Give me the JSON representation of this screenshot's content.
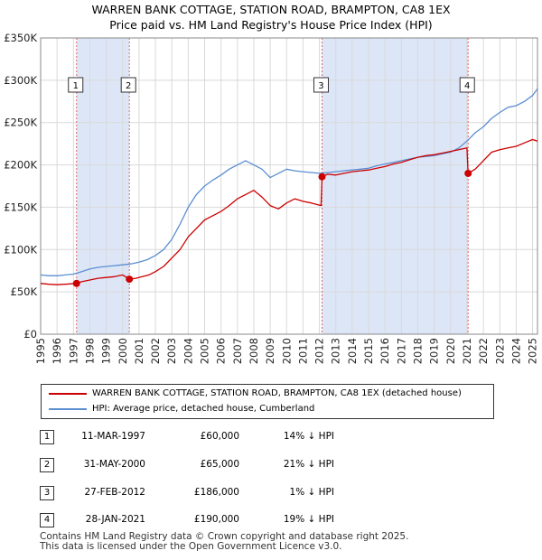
{
  "chart_data": {
    "type": "line",
    "title": "WARREN BANK COTTAGE, STATION ROAD, BRAMPTON, CA8 1EX",
    "subtitle": "Price paid vs. HM Land Registry's House Price Index (HPI)",
    "xlim": [
      1995,
      2025.3
    ],
    "ylim": [
      0,
      350000
    ],
    "y_ticks": [
      0,
      50000,
      100000,
      150000,
      200000,
      250000,
      300000,
      350000
    ],
    "y_tick_labels": [
      "£0",
      "£50K",
      "£100K",
      "£150K",
      "£200K",
      "£250K",
      "£300K",
      "£350K"
    ],
    "x_ticks": [
      1995,
      1996,
      1997,
      1998,
      1999,
      2000,
      2001,
      2002,
      2003,
      2004,
      2005,
      2006,
      2007,
      2008,
      2009,
      2010,
      2011,
      2012,
      2013,
      2014,
      2015,
      2016,
      2017,
      2018,
      2019,
      2020,
      2021,
      2022,
      2023,
      2024,
      2025
    ],
    "x_tick_labels": [
      "1995",
      "1996",
      "1997",
      "1998",
      "1999",
      "2000",
      "2001",
      "2002",
      "2003",
      "2004",
      "2005",
      "2006",
      "2007",
      "2008",
      "2009",
      "2010",
      "2011",
      "2012",
      "2013",
      "2014",
      "2015",
      "2016",
      "2017",
      "2018",
      "2019",
      "2020",
      "2021",
      "2022",
      "2023",
      "2024",
      "2025"
    ],
    "grid": true,
    "shaded_periods": [
      [
        1997.19,
        2000.41
      ],
      [
        2012.16,
        2021.07
      ]
    ],
    "colors": {
      "property": "#cc0000",
      "hpi": "#5b8fd1",
      "shade": "#dde6f7",
      "vline": "#e06666"
    },
    "series": [
      {
        "name": "WARREN BANK COTTAGE, STATION ROAD, BRAMPTON, CA8 1EX (detached house)",
        "color": "#cc0000",
        "x": [
          1995.0,
          1995.5,
          1996.0,
          1996.5,
          1997.19,
          1997.5,
          1998.0,
          1998.5,
          1999.0,
          1999.5,
          2000.0,
          2000.41,
          2000.8,
          2001.2,
          2001.6,
          2002.0,
          2002.5,
          2003.0,
          2003.5,
          2004.0,
          2004.5,
          2005.0,
          2005.5,
          2006.0,
          2006.5,
          2007.0,
          2007.5,
          2008.0,
          2008.5,
          2009.0,
          2009.5,
          2010.0,
          2010.5,
          2011.0,
          2011.5,
          2012.1,
          2012.16,
          2012.5,
          2013.0,
          2013.5,
          2014.0,
          2014.5,
          2015.0,
          2015.5,
          2016.0,
          2016.5,
          2017.0,
          2017.5,
          2018.0,
          2018.5,
          2019.0,
          2019.5,
          2020.0,
          2020.5,
          2021.0,
          2021.07,
          2021.5,
          2022.0,
          2022.5,
          2023.0,
          2023.5,
          2024.0,
          2024.5,
          2025.0,
          2025.3
        ],
        "values": [
          60000,
          59000,
          58500,
          59000,
          60000,
          62000,
          64000,
          66000,
          67000,
          68000,
          70000,
          65000,
          66000,
          68000,
          70000,
          74000,
          80000,
          90000,
          100000,
          115000,
          125000,
          135000,
          140000,
          145000,
          152000,
          160000,
          165000,
          170000,
          162000,
          152000,
          148000,
          155000,
          160000,
          157000,
          155000,
          152000,
          186000,
          189000,
          188000,
          190000,
          192000,
          193000,
          194000,
          196000,
          198000,
          201000,
          203000,
          206000,
          209000,
          211000,
          212000,
          214000,
          216000,
          218000,
          220000,
          190000,
          195000,
          205000,
          215000,
          218000,
          220000,
          222000,
          226000,
          230000,
          228000
        ]
      },
      {
        "name": "HPI: Average price, detached house, Cumberland",
        "color": "#5b8fd1",
        "x": [
          1995.0,
          1995.5,
          1996.0,
          1996.5,
          1997.0,
          1997.5,
          1998.0,
          1998.5,
          1999.0,
          1999.5,
          2000.0,
          2000.5,
          2001.0,
          2001.5,
          2002.0,
          2002.5,
          2003.0,
          2003.5,
          2004.0,
          2004.5,
          2005.0,
          2005.5,
          2006.0,
          2006.5,
          2007.0,
          2007.5,
          2008.0,
          2008.5,
          2009.0,
          2009.5,
          2010.0,
          2010.5,
          2011.0,
          2011.5,
          2012.0,
          2012.5,
          2013.0,
          2013.5,
          2014.0,
          2014.5,
          2015.0,
          2015.5,
          2016.0,
          2016.5,
          2017.0,
          2017.5,
          2018.0,
          2018.5,
          2019.0,
          2019.5,
          2020.0,
          2020.5,
          2021.0,
          2021.5,
          2022.0,
          2022.5,
          2023.0,
          2023.5,
          2024.0,
          2024.5,
          2025.0,
          2025.3
        ],
        "values": [
          70000,
          69000,
          69000,
          70000,
          71000,
          74000,
          77000,
          79000,
          80000,
          81000,
          82000,
          83000,
          85000,
          88000,
          93000,
          100000,
          112000,
          130000,
          150000,
          165000,
          175000,
          182000,
          188000,
          195000,
          200000,
          205000,
          200000,
          195000,
          185000,
          190000,
          195000,
          193000,
          192000,
          191000,
          190000,
          191000,
          192000,
          193000,
          194000,
          195000,
          196000,
          199000,
          201000,
          203000,
          205000,
          207000,
          209000,
          210000,
          211000,
          213000,
          215000,
          220000,
          228000,
          238000,
          245000,
          255000,
          262000,
          268000,
          270000,
          275000,
          282000,
          290000
        ]
      }
    ],
    "sales": [
      {
        "n": "1",
        "x": 1997.19,
        "price": 60000
      },
      {
        "n": "2",
        "x": 2000.41,
        "price": 65000
      },
      {
        "n": "3",
        "x": 2012.16,
        "price": 186000
      },
      {
        "n": "4",
        "x": 2021.07,
        "price": 190000
      }
    ]
  },
  "legend": {
    "property": "WARREN BANK COTTAGE, STATION ROAD, BRAMPTON, CA8 1EX (detached house)",
    "hpi": "HPI: Average price, detached house, Cumberland"
  },
  "transactions": [
    {
      "n": "1",
      "date": "11-MAR-1997",
      "price": "£60,000",
      "hpi": "14% ↓ HPI"
    },
    {
      "n": "2",
      "date": "31-MAY-2000",
      "price": "£65,000",
      "hpi": "21% ↓ HPI"
    },
    {
      "n": "3",
      "date": "27-FEB-2012",
      "price": "£186,000",
      "hpi": "1% ↓ HPI"
    },
    {
      "n": "4",
      "date": "28-JAN-2021",
      "price": "£190,000",
      "hpi": "19% ↓ HPI"
    }
  ],
  "footer": {
    "line1": "Contains HM Land Registry data © Crown copyright and database right 2025.",
    "line2": "This data is licensed under the Open Government Licence v3.0."
  }
}
